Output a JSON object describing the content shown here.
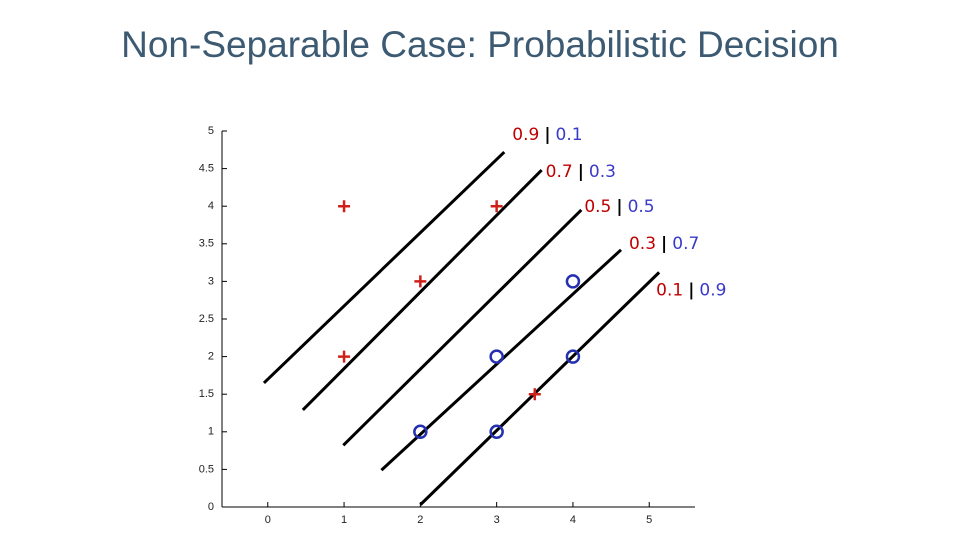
{
  "title": "Non-Separable Case: Probabilistic Decision",
  "chart_data": {
    "type": "scatter",
    "xlim": [
      -0.6,
      5.6
    ],
    "ylim": [
      0,
      5
    ],
    "xticks": [
      0,
      1,
      2,
      3,
      4,
      5
    ],
    "yticks": [
      0,
      0.5,
      1,
      1.5,
      2,
      2.5,
      3,
      3.5,
      4,
      4.5,
      5
    ],
    "series": [
      {
        "marker": "plus",
        "color": "#d0201a",
        "x": [
          1,
          3,
          2,
          1,
          3.5
        ],
        "values": [
          4,
          4,
          3,
          2,
          1.5
        ]
      },
      {
        "marker": "circle",
        "color": "#2430b0",
        "x": [
          4,
          3,
          4,
          2,
          3
        ],
        "values": [
          3,
          2,
          2,
          1,
          1
        ]
      }
    ],
    "boundaries": [
      {
        "x": [
          -0.05,
          3.1
        ],
        "y": [
          1.65,
          4.72
        ],
        "label": {
          "left": "0.9",
          "sep": "|",
          "right": "0.1"
        }
      },
      {
        "x": [
          0.46,
          3.59
        ],
        "y": [
          1.29,
          4.48
        ],
        "label": {
          "left": "0.7",
          "sep": "|",
          "right": "0.3"
        }
      },
      {
        "x": [
          0.99,
          4.11
        ],
        "y": [
          0.82,
          3.95
        ],
        "label": {
          "left": "0.5",
          "sep": "|",
          "right": "0.5"
        }
      },
      {
        "x": [
          1.49,
          4.63
        ],
        "y": [
          0.49,
          3.42
        ],
        "label": {
          "left": "0.3",
          "sep": "|",
          "right": "0.7"
        }
      },
      {
        "x": [
          2.0,
          5.13
        ],
        "y": [
          0.03,
          3.12
        ],
        "label": {
          "left": "0.1",
          "sep": "|",
          "right": "0.9"
        }
      }
    ],
    "label_colors": {
      "left": "#c00000",
      "sep": "#000000",
      "right": "#3a3ac8"
    }
  }
}
